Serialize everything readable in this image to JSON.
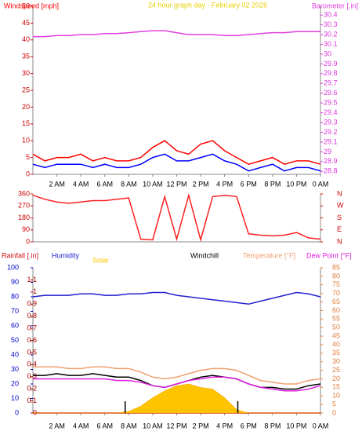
{
  "chart_data": [
    {
      "type": "line",
      "title": "24 hour graph day - February 02 2026",
      "x": [
        0,
        1,
        2,
        3,
        4,
        5,
        6,
        7,
        8,
        9,
        10,
        11,
        12,
        13,
        14,
        15,
        16,
        17,
        18,
        19,
        20,
        21,
        22,
        23,
        24
      ],
      "xlim": [
        0,
        24
      ],
      "xticks": [
        {
          "value": 2,
          "label": "2 AM"
        },
        {
          "value": 4,
          "label": "4 AM"
        },
        {
          "value": 6,
          "label": "6 AM"
        },
        {
          "value": 8,
          "label": "8 AM"
        },
        {
          "value": 10,
          "label": "10 AM"
        },
        {
          "value": 12,
          "label": "12 PM"
        },
        {
          "value": 14,
          "label": "2 PM"
        },
        {
          "value": 16,
          "label": "4 PM"
        },
        {
          "value": 18,
          "label": "6 PM"
        },
        {
          "value": 20,
          "label": "8 PM"
        },
        {
          "value": 22,
          "label": "10 PM"
        },
        {
          "value": 24,
          "label": "0 AM"
        }
      ],
      "axes": [
        {
          "lim": [
            0,
            50
          ],
          "ticks": [
            0,
            5,
            10,
            15,
            20,
            25,
            30,
            35,
            40,
            45,
            50
          ],
          "color": "#cc0000"
        },
        {
          "lim": [
            28.77,
            30.49
          ],
          "ticks": [
            28.8,
            28.9,
            29,
            29.1,
            29.2,
            29.3,
            29.4,
            29.5,
            29.6,
            29.7,
            29.8,
            29.9,
            30,
            30.1,
            30.2,
            30.3,
            30.4
          ],
          "color": "#dd33dd"
        }
      ],
      "series": [
        {
          "name": "Windspeed [mph]",
          "color": "#ff0000",
          "axis": 0,
          "values": [
            6,
            4,
            5,
            5,
            6,
            4,
            5,
            4,
            4,
            5,
            8,
            10,
            7,
            6,
            9,
            10,
            7,
            5,
            3,
            4,
            5,
            3,
            4,
            4,
            3
          ]
        },
        {
          "color": "#0000ff",
          "axis": 0,
          "values": [
            3,
            2,
            3,
            3,
            3,
            2,
            3,
            2,
            2,
            3,
            5,
            6,
            4,
            4,
            5,
            6,
            4,
            3,
            1,
            2,
            3,
            1,
            2,
            2,
            1
          ]
        },
        {
          "name": "Barometer [.in]",
          "color": "#e040e0",
          "axis": 1,
          "values": [
            30.18,
            30.18,
            30.19,
            30.19,
            30.2,
            30.2,
            30.21,
            30.21,
            30.22,
            30.23,
            30.24,
            30.24,
            30.22,
            30.2,
            30.2,
            30.2,
            30.19,
            30.19,
            30.2,
            30.21,
            30.22,
            30.22,
            30.23,
            30.23,
            30.23
          ]
        }
      ]
    },
    {
      "type": "line",
      "x": [
        0,
        1,
        2,
        3,
        4,
        5,
        6,
        7,
        8,
        9,
        10,
        11,
        12,
        13,
        14,
        15,
        16,
        17,
        18,
        19,
        20,
        21,
        22,
        23,
        24
      ],
      "xlim": [
        0,
        24
      ],
      "axes": [
        {
          "lim": [
            0,
            360
          ],
          "ticks": [
            0,
            90,
            180,
            270,
            360
          ],
          "color": "#cc0000"
        },
        {
          "lim": [
            0,
            360
          ],
          "ticks": [
            {
              "value": 360,
              "label": "N"
            },
            {
              "value": 270,
              "label": "W"
            },
            {
              "value": 180,
              "label": "S"
            },
            {
              "value": 90,
              "label": "E"
            },
            {
              "value": 0,
              "label": "N"
            }
          ],
          "color": "#cc0000"
        }
      ],
      "series": [
        {
          "color": "#ff2020",
          "axis": 0,
          "values": [
            350,
            320,
            300,
            290,
            300,
            310,
            310,
            320,
            330,
            20,
            15,
            340,
            20,
            350,
            15,
            340,
            350,
            340,
            60,
            50,
            45,
            50,
            70,
            30,
            20
          ]
        }
      ]
    },
    {
      "type": "line",
      "x": [
        0,
        1,
        2,
        3,
        4,
        5,
        6,
        7,
        8,
        9,
        10,
        11,
        12,
        13,
        14,
        15,
        16,
        17,
        18,
        19,
        20,
        21,
        22,
        23,
        24
      ],
      "xlim": [
        0,
        24
      ],
      "xticks": [
        {
          "value": 2,
          "label": "2 AM"
        },
        {
          "value": 4,
          "label": "4 AM"
        },
        {
          "value": 6,
          "label": "6 AM"
        },
        {
          "value": 8,
          "label": "8 AM"
        },
        {
          "value": 10,
          "label": "10 AM"
        },
        {
          "value": 12,
          "label": "12 PM"
        },
        {
          "value": 14,
          "label": "2 PM"
        },
        {
          "value": 16,
          "label": "4 PM"
        },
        {
          "value": 18,
          "label": "6 PM"
        },
        {
          "value": 20,
          "label": "8 PM"
        },
        {
          "value": 22,
          "label": "10 PM"
        },
        {
          "value": 24,
          "label": "0 AM"
        }
      ],
      "markers": [
        7.7,
        17.1
      ],
      "axes": [
        {
          "lim": [
            0,
            100
          ],
          "ticks": [
            0,
            10,
            20,
            30,
            40,
            50,
            60,
            70,
            80,
            90,
            100
          ],
          "color": "#0000cc"
        },
        {
          "lim": [
            0,
            1.2
          ],
          "ticks": [
            0,
            0.1,
            0.2,
            0.3,
            0.4,
            0.5,
            0.6,
            0.7,
            0.8,
            0.9,
            1,
            1.1
          ],
          "color": "#aa0000"
        },
        {
          "lim": [
            0,
            85
          ],
          "ticks": [
            0,
            5,
            10,
            15,
            20,
            25,
            30,
            35,
            40,
            45,
            50,
            55,
            60,
            65,
            70,
            75,
            80,
            85
          ],
          "color": "#e08040"
        }
      ],
      "series": [
        {
          "name": "Rainfall [.in]",
          "color": "#cc1010",
          "axis": 1,
          "values": [
            0,
            0,
            0,
            0,
            0,
            0,
            0,
            0,
            0,
            0,
            0,
            0,
            0,
            0,
            0,
            0,
            0,
            0,
            0,
            0,
            0,
            0,
            0,
            0,
            0
          ]
        },
        {
          "name": "Humidity",
          "color": "#2020d0",
          "axis": 0,
          "values": [
            80,
            81,
            81,
            81,
            82,
            82,
            81,
            81,
            82,
            82,
            83,
            83,
            81,
            80,
            79,
            78,
            77,
            76,
            75,
            77,
            79,
            81,
            83,
            82,
            80
          ]
        },
        {
          "name": "Solar",
          "color": "#ffc400",
          "axis": 2,
          "kind": "area",
          "values": [
            0,
            0,
            0,
            0,
            0,
            0,
            0,
            0,
            1,
            4,
            9,
            13,
            16,
            17,
            15,
            14,
            9,
            2,
            0,
            0,
            0,
            0,
            0,
            0,
            0
          ]
        },
        {
          "name": "Windchill",
          "color": "#000000",
          "axis": 2,
          "values": [
            22,
            22,
            23,
            22,
            22,
            23,
            22,
            21,
            21,
            19,
            16,
            15,
            17,
            19,
            21,
            22,
            21,
            20,
            17,
            15,
            15,
            14,
            14,
            16,
            17
          ]
        },
        {
          "name": "Temperature [°F]",
          "color": "#f0a070",
          "axis": 2,
          "values": [
            27,
            27,
            27,
            26,
            26,
            27,
            27,
            26,
            26,
            24,
            21,
            20,
            21,
            23,
            25,
            26,
            26,
            25,
            22,
            19,
            18,
            17,
            17,
            19,
            20
          ]
        },
        {
          "name": "Dew Point [°F]",
          "color": "#e020e0",
          "axis": 2,
          "values": [
            20,
            20,
            20,
            20,
            20,
            20,
            20,
            19,
            19,
            18,
            16,
            15,
            17,
            19,
            20,
            21,
            21,
            20,
            17,
            15,
            14,
            13,
            13,
            14,
            16
          ]
        }
      ]
    }
  ]
}
